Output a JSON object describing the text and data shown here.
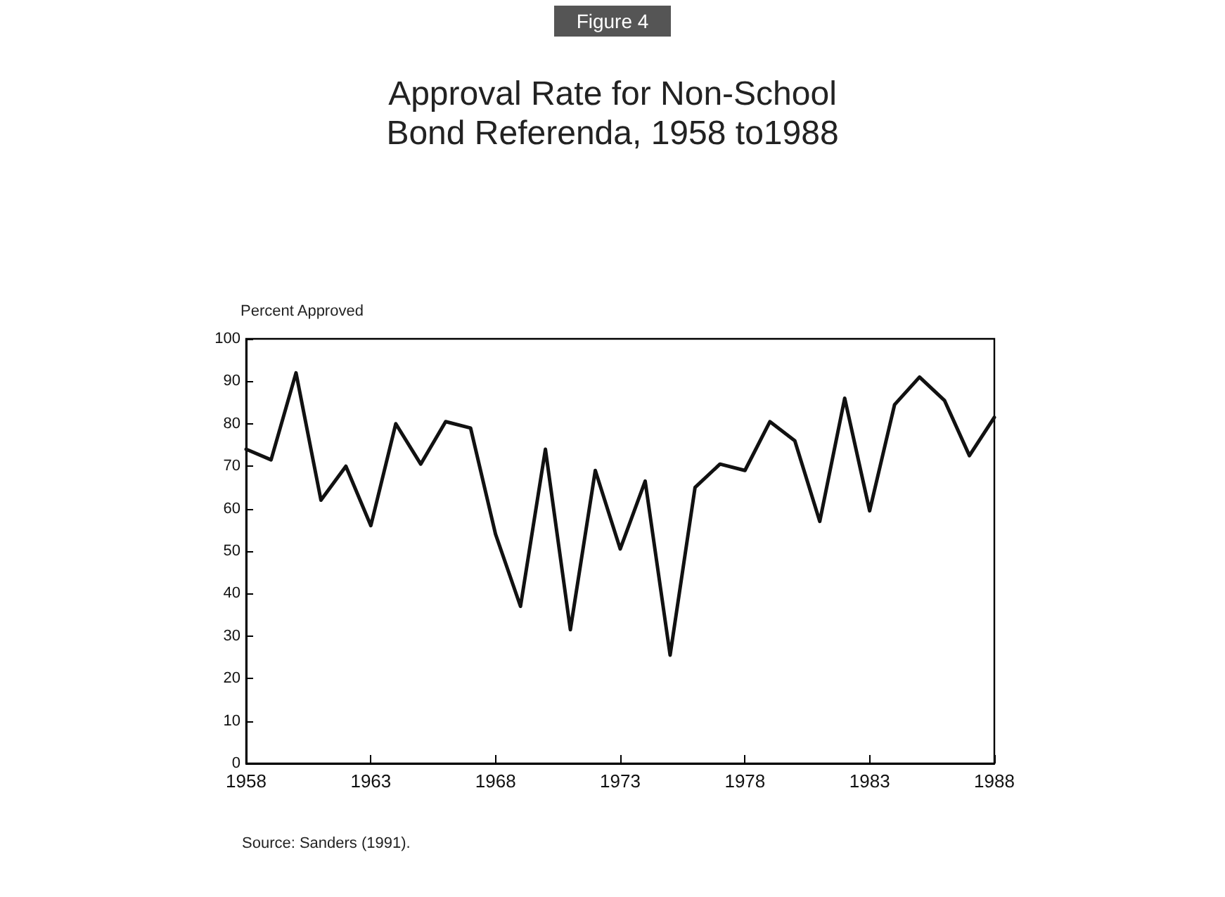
{
  "chart_data": {
    "type": "line",
    "title": "Approval Rate for Non-School\nBond Referenda, 1958 to1988",
    "ylabel": "Percent Approved",
    "annotations": [
      "Figure 4",
      "Source: Sanders (1991)."
    ],
    "x": [
      1958,
      1959,
      1960,
      1961,
      1962,
      1963,
      1964,
      1965,
      1966,
      1967,
      1968,
      1969,
      1970,
      1971,
      1972,
      1973,
      1974,
      1975,
      1976,
      1977,
      1978,
      1979,
      1980,
      1981,
      1982,
      1983,
      1984,
      1985,
      1986,
      1987,
      1988
    ],
    "series": [
      {
        "color": "#111111",
        "values": [
          74,
          71.5,
          92,
          62,
          70,
          56,
          80,
          70.5,
          80.5,
          79,
          54,
          37,
          74,
          31.5,
          69,
          50.5,
          66.5,
          25.5,
          65,
          70.5,
          69,
          80.5,
          76,
          57,
          86,
          59.5,
          84.5,
          91,
          85.5,
          72.5,
          81.5
        ]
      }
    ],
    "xlim": [
      1958,
      1988
    ],
    "xticks": [
      1958,
      1963,
      1968,
      1973,
      1978,
      1983,
      1988
    ],
    "ylim": [
      0,
      100
    ],
    "yticks": [
      0,
      10,
      20,
      30,
      40,
      50,
      60,
      70,
      80,
      90,
      100
    ],
    "marker": "none",
    "line_style": "solid"
  }
}
